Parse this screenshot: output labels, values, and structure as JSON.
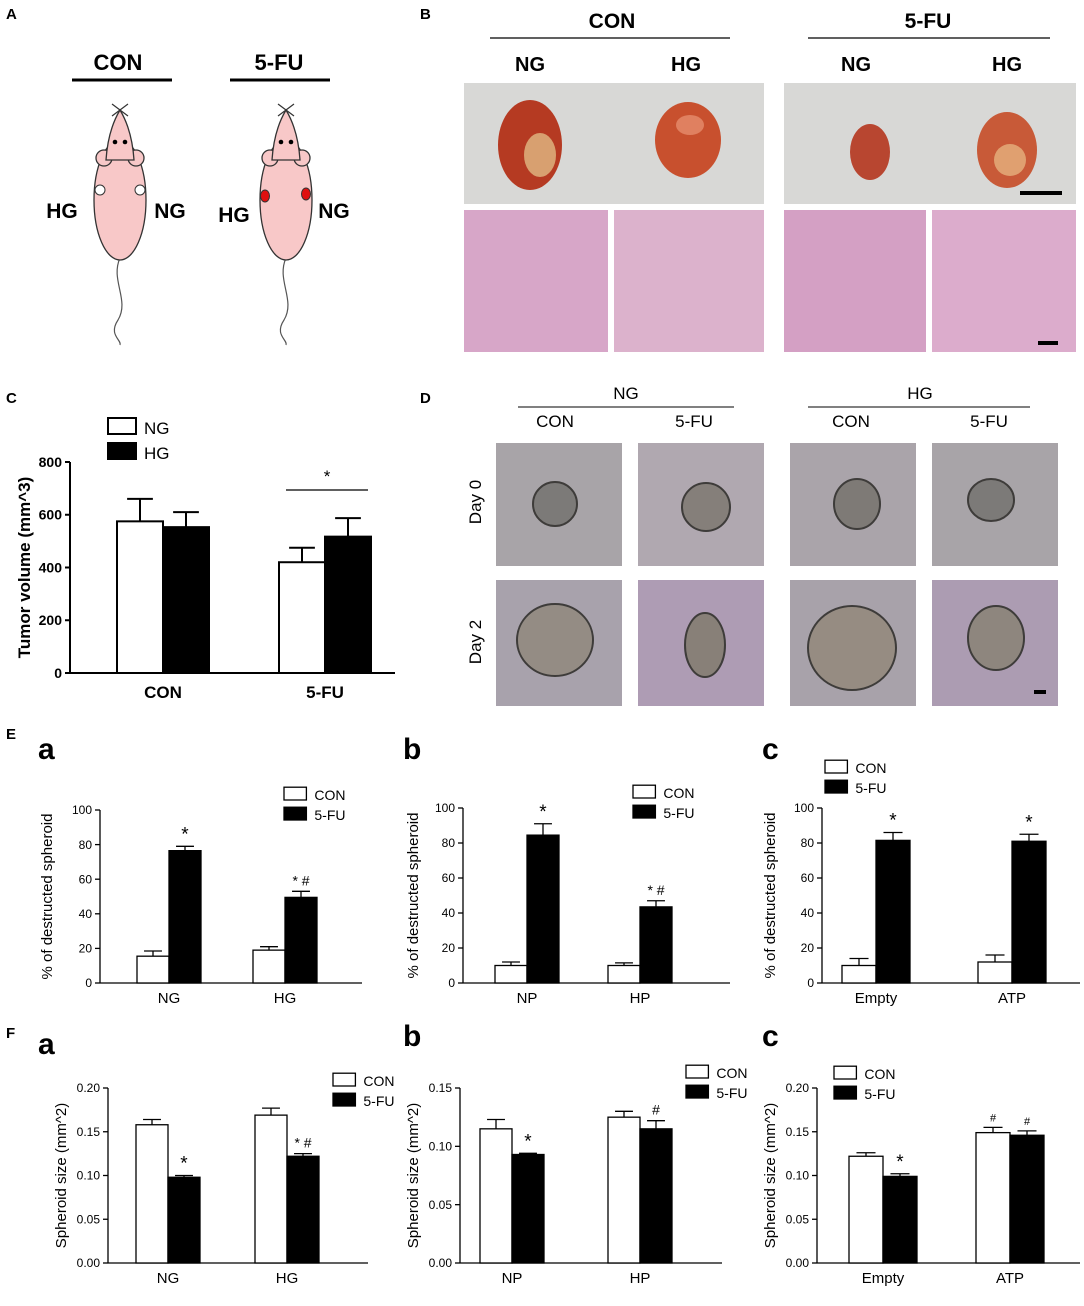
{
  "panel_labels": {
    "A": "A",
    "B": "B",
    "C": "C",
    "D": "D",
    "E": "E",
    "F": "F"
  },
  "panelA": {
    "groups": [
      "CON",
      "5-FU"
    ],
    "left_label": "HG",
    "right_label": "NG",
    "colors": {
      "mouse": "#f8c8c8",
      "tumor_con": "#ffffff",
      "tumor_5fu": "#e01010"
    }
  },
  "panelB": {
    "groups": [
      "CON",
      "5-FU"
    ],
    "subgroups": [
      "NG",
      "HG",
      "NG",
      "HG"
    ]
  },
  "panelD": {
    "groups": [
      "NG",
      "HG"
    ],
    "subgroups": [
      "CON",
      "5-FU",
      "CON",
      "5-FU"
    ],
    "rows": [
      "Day 0",
      "Day 2"
    ]
  },
  "panelE": {
    "sublabels": [
      "a",
      "b",
      "c"
    ]
  },
  "panelF": {
    "sublabels": [
      "a",
      "b",
      "c"
    ]
  },
  "chart_data": [
    {
      "id": "C",
      "type": "bar",
      "categories": [
        "CON",
        "5-FU"
      ],
      "series": [
        {
          "name": "NG",
          "values": [
            575,
            420
          ],
          "err": [
            85,
            55
          ],
          "fill": "#ffffff"
        },
        {
          "name": "HG",
          "values": [
            553,
            517
          ],
          "err": [
            57,
            70
          ],
          "fill": "#000000"
        }
      ],
      "ylabel": "Tumor volume (mm^3)",
      "ylim": [
        0,
        800
      ],
      "yticks": [
        "0",
        "200",
        "400",
        "600",
        "800"
      ],
      "annotations": [
        {
          "text": "*",
          "type": "bracket"
        }
      ],
      "legend": "top-left"
    },
    {
      "id": "Ea",
      "type": "bar",
      "categories": [
        "NG",
        "HG"
      ],
      "series": [
        {
          "name": "CON",
          "values": [
            15.5,
            19
          ],
          "err": [
            3,
            2
          ],
          "fill": "#ffffff"
        },
        {
          "name": "5-FU",
          "values": [
            76.5,
            49.5
          ],
          "err": [
            2.5,
            3.5
          ],
          "fill": "#000000"
        }
      ],
      "ylabel": "% of destructed spheroid",
      "ylim": [
        0,
        100
      ],
      "yticks": [
        "0",
        "20",
        "40",
        "60",
        "80",
        "100"
      ],
      "annotations": [
        {
          "text": "*",
          "cat": 0
        },
        {
          "text": "* #",
          "cat": 1
        }
      ],
      "legend": "top-right"
    },
    {
      "id": "Eb",
      "type": "bar",
      "categories": [
        "NP",
        "HP"
      ],
      "series": [
        {
          "name": "CON",
          "values": [
            10,
            10
          ],
          "err": [
            2,
            1.5
          ],
          "fill": "#ffffff"
        },
        {
          "name": "5-FU",
          "values": [
            84.5,
            43.5
          ],
          "err": [
            6.5,
            3.5
          ],
          "fill": "#000000"
        }
      ],
      "ylabel": "% of destructed spheroid",
      "ylim": [
        0,
        100
      ],
      "yticks": [
        "0",
        "20",
        "40",
        "60",
        "80",
        "100"
      ],
      "annotations": [
        {
          "text": "*",
          "cat": 0
        },
        {
          "text": "* #",
          "cat": 1
        }
      ],
      "legend": "top-right"
    },
    {
      "id": "Ec",
      "type": "bar",
      "categories": [
        "Empty",
        "ATP"
      ],
      "series": [
        {
          "name": "CON",
          "values": [
            10,
            12
          ],
          "err": [
            4,
            4
          ],
          "fill": "#ffffff"
        },
        {
          "name": "5-FU",
          "values": [
            81.5,
            81
          ],
          "err": [
            4.5,
            4
          ],
          "fill": "#000000"
        }
      ],
      "ylabel": "% of destructed spheroid",
      "ylim": [
        0,
        100
      ],
      "yticks": [
        "0",
        "20",
        "40",
        "60",
        "80",
        "100"
      ],
      "annotations": [
        {
          "text": "*",
          "cat": 0
        },
        {
          "text": "*",
          "cat": 1
        }
      ],
      "legend": "top-left"
    },
    {
      "id": "Fa",
      "type": "bar",
      "categories": [
        "NG",
        "HG"
      ],
      "series": [
        {
          "name": "CON",
          "values": [
            0.158,
            0.169
          ],
          "err": [
            0.006,
            0.008
          ],
          "fill": "#ffffff"
        },
        {
          "name": "5-FU",
          "values": [
            0.098,
            0.122
          ],
          "err": [
            0.002,
            0.003
          ],
          "fill": "#000000"
        }
      ],
      "ylabel": "Spheroid size (mm^2)",
      "ylim": [
        0,
        0.2
      ],
      "yticks": [
        "0.00",
        "0.05",
        "0.10",
        "0.15",
        "0.20"
      ],
      "annotations": [
        {
          "text": "*",
          "cat": 0
        },
        {
          "text": "* #",
          "cat": 1
        }
      ],
      "legend": "top-right"
    },
    {
      "id": "Fb",
      "type": "bar",
      "categories": [
        "NP",
        "HP"
      ],
      "series": [
        {
          "name": "CON",
          "values": [
            0.115,
            0.125
          ],
          "err": [
            0.008,
            0.005
          ],
          "fill": "#ffffff"
        },
        {
          "name": "5-FU",
          "values": [
            0.093,
            0.115
          ],
          "err": [
            0.001,
            0.007
          ],
          "fill": "#000000"
        }
      ],
      "ylabel": "Spheroid size (mm^2)",
      "ylim": [
        0,
        0.15
      ],
      "yticks": [
        "0.00",
        "0.05",
        "0.10",
        "0.15"
      ],
      "annotations": [
        {
          "text": "*",
          "cat": 0
        },
        {
          "text": "#",
          "cat": 1
        }
      ],
      "legend": "top-right"
    },
    {
      "id": "Fc",
      "type": "bar",
      "categories": [
        "Empty",
        "ATP"
      ],
      "series": [
        {
          "name": "CON",
          "values": [
            0.122,
            0.149
          ],
          "err": [
            0.004,
            0.006
          ],
          "fill": "#ffffff"
        },
        {
          "name": "5-FU",
          "values": [
            0.099,
            0.146
          ],
          "err": [
            0.003,
            0.005
          ],
          "fill": "#000000"
        }
      ],
      "ylabel": "Spheroid size (mm^2)",
      "ylim": [
        0,
        0.2
      ],
      "yticks": [
        "0.00",
        "0.05",
        "0.10",
        "0.15",
        "0.20"
      ],
      "annotations": [
        {
          "text": "*",
          "cat": 0
        },
        {
          "text": "#",
          "cat": 1,
          "both": true
        }
      ],
      "legend": "top-right"
    }
  ]
}
